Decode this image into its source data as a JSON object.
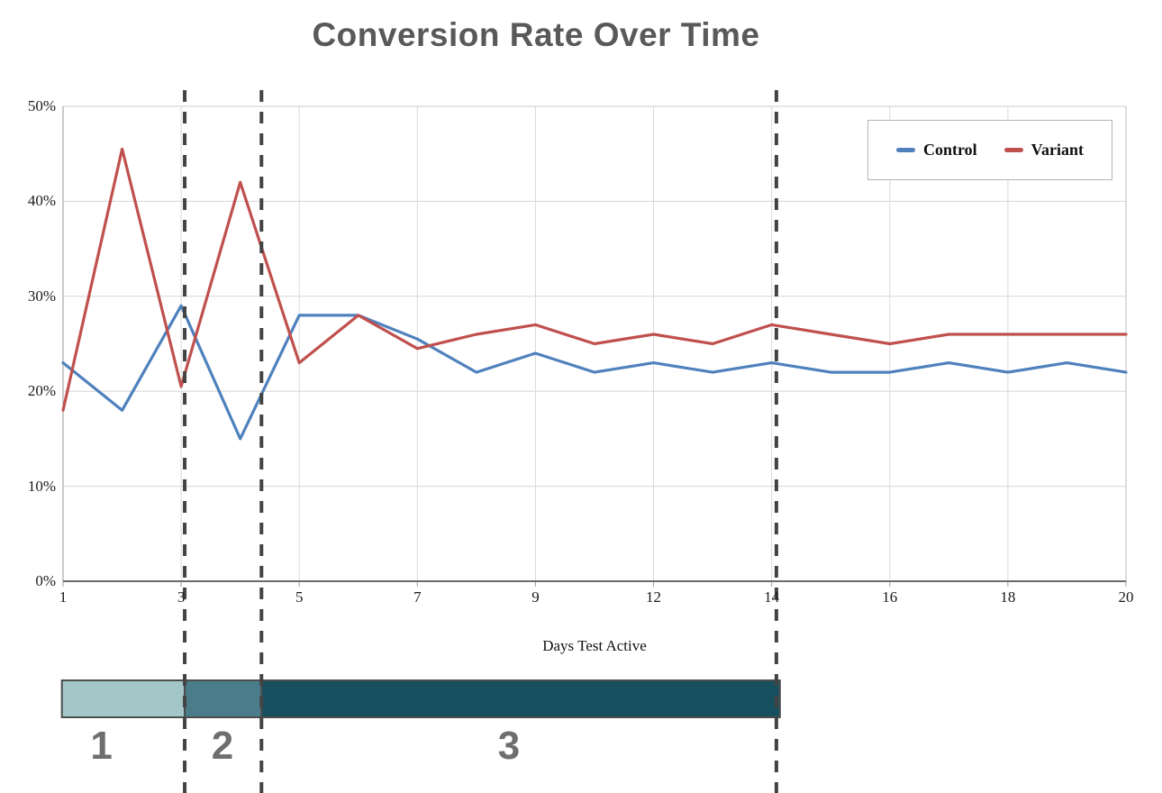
{
  "title": "Conversion Rate Over Time",
  "legend": {
    "items": [
      {
        "label": "Control"
      },
      {
        "label": "Variant"
      }
    ]
  },
  "chart_data": {
    "type": "line",
    "title": "Conversion Rate Over Time",
    "xlabel": "Days Test Active",
    "ylabel": "",
    "ylim": [
      0,
      50
    ],
    "y_tick_labels": [
      "0%",
      "10%",
      "20%",
      "30%",
      "40%",
      "50%"
    ],
    "x_tick_labels": [
      "1",
      "3",
      "5",
      "7",
      "9",
      "12",
      "14",
      "16",
      "18",
      "20"
    ],
    "x_tick_every": 2,
    "n_points": 19,
    "grid": true,
    "legend_position": "top-right",
    "series": [
      {
        "name": "Control",
        "color": "#4F81BD",
        "values": [
          23,
          18,
          29,
          15,
          28,
          28,
          25.5,
          22,
          24,
          22,
          23,
          22,
          23,
          22,
          22,
          23,
          22,
          23,
          22
        ]
      },
      {
        "name": "Variant",
        "color": "#C0504D",
        "values": [
          18,
          45.5,
          20.5,
          42,
          23,
          28,
          24.5,
          26,
          27,
          25,
          26,
          25,
          27,
          26,
          25,
          26,
          26,
          26,
          26
        ]
      }
    ],
    "dashed_markers": {
      "color": "#434343",
      "x_indices": [
        2.06,
        3.36,
        12.08
      ]
    },
    "phases": [
      {
        "label": "1",
        "start_index": -0.02,
        "end_index": 2.06,
        "label_index": 0.65,
        "color": "#A3C6C9"
      },
      {
        "label": "2",
        "start_index": 2.06,
        "end_index": 3.36,
        "label_index": 2.7,
        "color": "#4A7D89"
      },
      {
        "label": "3",
        "start_index": 3.36,
        "end_index": 12.14,
        "label_index": 7.55,
        "color": "#16505F"
      }
    ],
    "phase_label_color": "#6e6e6e"
  }
}
